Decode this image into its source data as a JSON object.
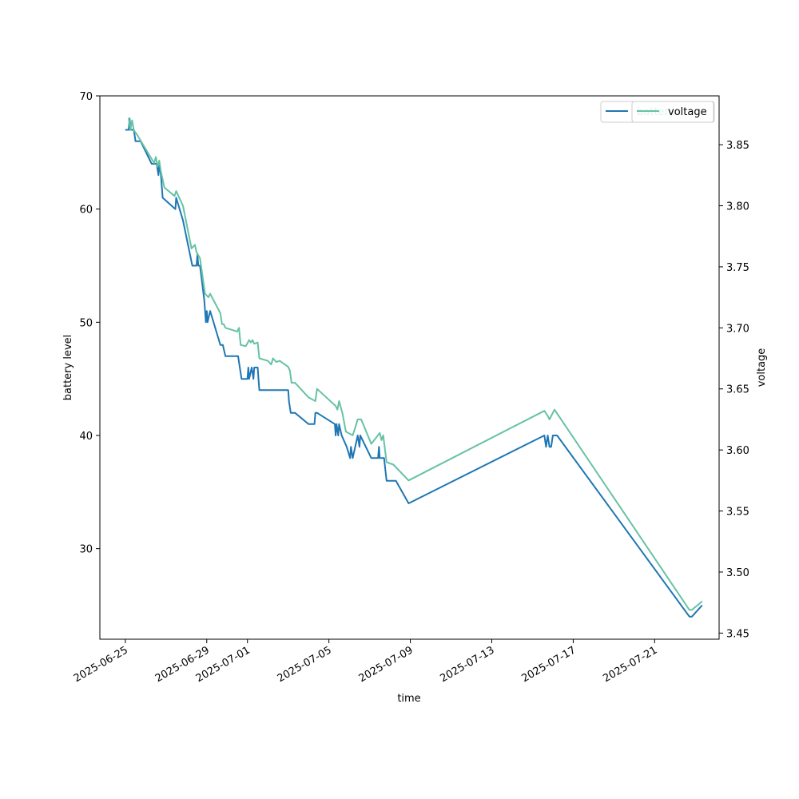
{
  "chart_data": {
    "type": "line",
    "title": "",
    "xlabel": "time",
    "ylabel_left": "battery level",
    "ylabel_right": "voltage",
    "x_range": [
      "2025-06-23T18:00",
      "2025-07-24T04:00"
    ],
    "ylim_left": [
      22,
      70
    ],
    "ylim_right": [
      3.445,
      3.89
    ],
    "x_ticks": [
      "2025-06-25",
      "2025-06-29",
      "2025-07-01",
      "2025-07-05",
      "2025-07-09",
      "2025-07-13",
      "2025-07-17",
      "2025-07-21"
    ],
    "y_ticks_left": [
      30,
      40,
      50,
      60,
      70
    ],
    "y_ticks_right": [
      "3.45",
      "3.50",
      "3.55",
      "3.60",
      "3.65",
      "3.70",
      "3.75",
      "3.80",
      "3.85"
    ],
    "grid": false,
    "legend_left": {
      "position": "top-right",
      "entries": [
        "battery"
      ]
    },
    "legend_right": {
      "position": "top-right",
      "entries": [
        "voltage"
      ]
    },
    "colors": {
      "battery": "#1f77b4",
      "voltage": "#66c2a5"
    },
    "series": [
      {
        "name": "battery",
        "axis": "left",
        "points": [
          [
            "2025-06-25T00:00",
            67
          ],
          [
            "2025-06-25T04:00",
            67
          ],
          [
            "2025-06-25T05:00",
            68
          ],
          [
            "2025-06-25T06:00",
            67
          ],
          [
            "2025-06-25T08:00",
            67
          ],
          [
            "2025-06-25T10:00",
            67
          ],
          [
            "2025-06-25T12:00",
            66
          ],
          [
            "2025-06-25T18:00",
            66
          ],
          [
            "2025-06-26T07:00",
            64
          ],
          [
            "2025-06-26T13:00",
            64
          ],
          [
            "2025-06-26T15:00",
            63
          ],
          [
            "2025-06-26T16:00",
            64
          ],
          [
            "2025-06-26T18:00",
            63
          ],
          [
            "2025-06-26T20:00",
            61
          ],
          [
            "2025-06-27T11:00",
            60
          ],
          [
            "2025-06-27T12:00",
            61
          ],
          [
            "2025-06-27T20:00",
            59
          ],
          [
            "2025-06-28T07:00",
            55
          ],
          [
            "2025-06-28T12:00",
            55
          ],
          [
            "2025-06-28T13:00",
            56
          ],
          [
            "2025-06-28T14:00",
            55
          ],
          [
            "2025-06-28T16:00",
            55
          ],
          [
            "2025-06-28T21:00",
            52
          ],
          [
            "2025-06-28T23:00",
            50
          ],
          [
            "2025-06-29T00:00",
            51
          ],
          [
            "2025-06-29T01:00",
            50
          ],
          [
            "2025-06-29T04:00",
            51
          ],
          [
            "2025-06-29T08:00",
            50
          ],
          [
            "2025-06-29T12:00",
            49
          ],
          [
            "2025-06-29T16:00",
            48
          ],
          [
            "2025-06-29T19:00",
            48
          ],
          [
            "2025-06-29T22:00",
            47
          ],
          [
            "2025-06-30T13:00",
            47
          ],
          [
            "2025-06-30T17:00",
            45
          ],
          [
            "2025-06-30T21:00",
            45
          ],
          [
            "2025-07-01T00:00",
            45
          ],
          [
            "2025-07-01T01:00",
            46
          ],
          [
            "2025-07-01T02:00",
            45
          ],
          [
            "2025-07-01T05:00",
            46
          ],
          [
            "2025-07-01T07:00",
            45
          ],
          [
            "2025-07-01T08:00",
            46
          ],
          [
            "2025-07-01T12:00",
            46
          ],
          [
            "2025-07-01T13:00",
            45
          ],
          [
            "2025-07-01T14:00",
            44
          ],
          [
            "2025-07-02T00:00",
            44
          ],
          [
            "2025-07-02T12:00",
            44
          ],
          [
            "2025-07-03T00:00",
            44
          ],
          [
            "2025-07-03T01:00",
            43
          ],
          [
            "2025-07-03T03:00",
            42
          ],
          [
            "2025-07-03T08:00",
            42
          ],
          [
            "2025-07-04T00:00",
            41
          ],
          [
            "2025-07-04T07:00",
            41
          ],
          [
            "2025-07-04T08:00",
            42
          ],
          [
            "2025-07-04T10:00",
            42
          ],
          [
            "2025-07-05T07:00",
            41
          ],
          [
            "2025-07-05T08:00",
            40
          ],
          [
            "2025-07-05T09:00",
            41
          ],
          [
            "2025-07-05T11:00",
            40
          ],
          [
            "2025-07-05T12:00",
            41
          ],
          [
            "2025-07-05T15:00",
            40
          ],
          [
            "2025-07-05T21:00",
            39
          ],
          [
            "2025-07-06T01:00",
            38
          ],
          [
            "2025-07-06T02:00",
            39
          ],
          [
            "2025-07-06T04:00",
            38
          ],
          [
            "2025-07-06T07:00",
            39
          ],
          [
            "2025-07-06T10:00",
            40
          ],
          [
            "2025-07-06T12:00",
            39
          ],
          [
            "2025-07-06T13:00",
            40
          ],
          [
            "2025-07-07T02:00",
            38
          ],
          [
            "2025-07-07T10:00",
            38
          ],
          [
            "2025-07-07T11:00",
            39
          ],
          [
            "2025-07-07T12:00",
            38
          ],
          [
            "2025-07-07T17:00",
            38
          ],
          [
            "2025-07-07T20:00",
            36
          ],
          [
            "2025-07-08T07:00",
            36
          ],
          [
            "2025-07-08T22:00",
            34
          ],
          [
            "2025-07-15T14:00",
            40
          ],
          [
            "2025-07-15T16:00",
            39
          ],
          [
            "2025-07-15T18:00",
            40
          ],
          [
            "2025-07-15T20:00",
            39
          ],
          [
            "2025-07-15T22:00",
            39
          ],
          [
            "2025-07-16T00:00",
            40
          ],
          [
            "2025-07-16T05:00",
            40
          ],
          [
            "2025-07-22T17:00",
            24
          ],
          [
            "2025-07-22T20:00",
            24
          ],
          [
            "2025-07-23T08:00",
            25
          ]
        ]
      },
      {
        "name": "voltage",
        "axis": "right",
        "points": [
          [
            "2025-06-25T04:00",
            3.872
          ],
          [
            "2025-06-25T06:00",
            3.862
          ],
          [
            "2025-06-25T08:00",
            3.87
          ],
          [
            "2025-06-25T10:00",
            3.862
          ],
          [
            "2025-06-25T14:00",
            3.858
          ],
          [
            "2025-06-26T10:00",
            3.835
          ],
          [
            "2025-06-26T12:00",
            3.84
          ],
          [
            "2025-06-26T14:00",
            3.832
          ],
          [
            "2025-06-26T16:00",
            3.837
          ],
          [
            "2025-06-26T18:00",
            3.828
          ],
          [
            "2025-06-26T22:00",
            3.815
          ],
          [
            "2025-06-27T10:00",
            3.808
          ],
          [
            "2025-06-27T12:00",
            3.812
          ],
          [
            "2025-06-27T20:00",
            3.8
          ],
          [
            "2025-06-28T06:00",
            3.765
          ],
          [
            "2025-06-28T10:00",
            3.768
          ],
          [
            "2025-06-28T12:00",
            3.762
          ],
          [
            "2025-06-28T16:00",
            3.757
          ],
          [
            "2025-06-28T22:00",
            3.728
          ],
          [
            "2025-06-29T02:00",
            3.725
          ],
          [
            "2025-06-29T04:00",
            3.728
          ],
          [
            "2025-06-29T16:00",
            3.712
          ],
          [
            "2025-06-29T18:00",
            3.703
          ],
          [
            "2025-06-29T20:00",
            3.703
          ],
          [
            "2025-06-29T22:00",
            3.7
          ],
          [
            "2025-06-30T12:00",
            3.697
          ],
          [
            "2025-06-30T14:00",
            3.7
          ],
          [
            "2025-06-30T16:00",
            3.686
          ],
          [
            "2025-06-30T22:00",
            3.685
          ],
          [
            "2025-07-01T02:00",
            3.69
          ],
          [
            "2025-07-01T04:00",
            3.688
          ],
          [
            "2025-07-01T06:00",
            3.69
          ],
          [
            "2025-07-01T08:00",
            3.687
          ],
          [
            "2025-07-01T12:00",
            3.688
          ],
          [
            "2025-07-01T14:00",
            3.675
          ],
          [
            "2025-07-02T00:00",
            3.673
          ],
          [
            "2025-07-02T04:00",
            3.67
          ],
          [
            "2025-07-02T06:00",
            3.675
          ],
          [
            "2025-07-02T10:00",
            3.672
          ],
          [
            "2025-07-02T14:00",
            3.673
          ],
          [
            "2025-07-03T00:00",
            3.668
          ],
          [
            "2025-07-03T02:00",
            3.665
          ],
          [
            "2025-07-03T04:00",
            3.655
          ],
          [
            "2025-07-03T08:00",
            3.655
          ],
          [
            "2025-07-04T00:00",
            3.643
          ],
          [
            "2025-07-04T08:00",
            3.64
          ],
          [
            "2025-07-04T10:00",
            3.65
          ],
          [
            "2025-07-05T08:00",
            3.636
          ],
          [
            "2025-07-05T10:00",
            3.633
          ],
          [
            "2025-07-05T12:00",
            3.64
          ],
          [
            "2025-07-05T16:00",
            3.63
          ],
          [
            "2025-07-05T20:00",
            3.615
          ],
          [
            "2025-07-06T04:00",
            3.612
          ],
          [
            "2025-07-06T06:00",
            3.616
          ],
          [
            "2025-07-06T10:00",
            3.625
          ],
          [
            "2025-07-06T14:00",
            3.625
          ],
          [
            "2025-07-07T02:00",
            3.605
          ],
          [
            "2025-07-07T12:00",
            3.614
          ],
          [
            "2025-07-07T14:00",
            3.608
          ],
          [
            "2025-07-07T16:00",
            3.612
          ],
          [
            "2025-07-07T20:00",
            3.59
          ],
          [
            "2025-07-08T04:00",
            3.588
          ],
          [
            "2025-07-08T22:00",
            3.575
          ],
          [
            "2025-07-15T14:00",
            3.632
          ],
          [
            "2025-07-15T18:00",
            3.628
          ],
          [
            "2025-07-15T20:00",
            3.625
          ],
          [
            "2025-07-16T02:00",
            3.633
          ],
          [
            "2025-07-22T17:00",
            3.469
          ],
          [
            "2025-07-22T20:00",
            3.469
          ],
          [
            "2025-07-23T08:00",
            3.476
          ]
        ]
      }
    ]
  }
}
